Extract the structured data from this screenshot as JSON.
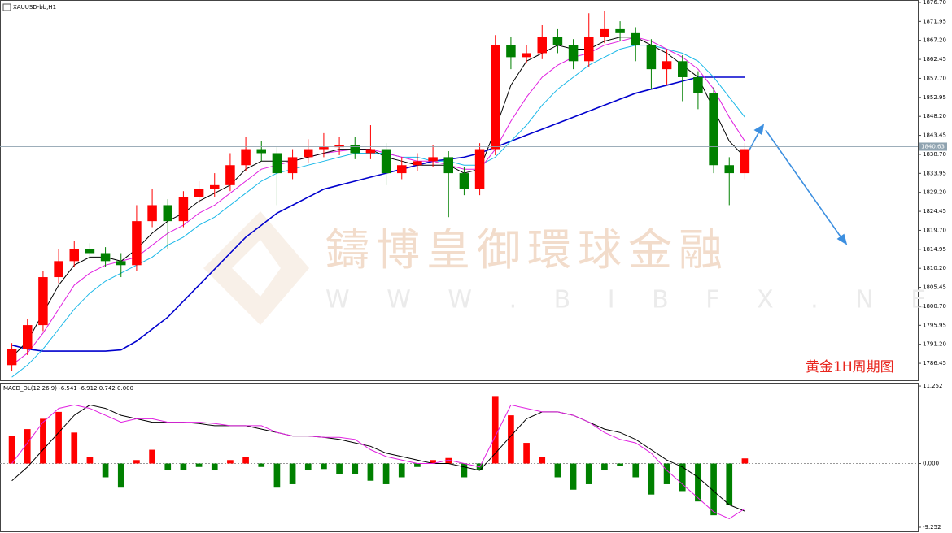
{
  "chart_data": [
    {
      "type": "candlestick",
      "title": "XAUUSD-bb,H1",
      "annotation": "黄金1H周期图",
      "watermark": "鑄博皇御環球金融",
      "watermark_url": "W W W . B I B F X . N E T",
      "up_color": "#ff0000",
      "down_color": "#008000",
      "last_price": 1840.63,
      "candles": {
        "open": [
          1786,
          1790,
          1796,
          1808,
          1812,
          1815,
          1814,
          1812,
          1811,
          1822,
          1826,
          1822,
          1828,
          1830,
          1831,
          1836,
          1840,
          1839,
          1834,
          1838,
          1840,
          1840.5,
          1841,
          1839,
          1840,
          1834,
          1836,
          1837,
          1838,
          1834,
          1830,
          1840,
          1866,
          1863,
          1864,
          1868,
          1866,
          1862,
          1868,
          1870,
          1869,
          1866,
          1860,
          1862,
          1858,
          1854,
          1836,
          1834
        ],
        "high": [
          1791.5,
          1797.5,
          1809.5,
          1815,
          1817,
          1816.5,
          1815.5,
          1814,
          1826,
          1830,
          1827.5,
          1829.5,
          1832,
          1834,
          1839,
          1843,
          1842,
          1840.5,
          1840,
          1842.5,
          1844,
          1843,
          1843,
          1846,
          1841.5,
          1838,
          1839,
          1841,
          1839.5,
          1835.5,
          1841.5,
          1868.5,
          1868,
          1866,
          1871,
          1870,
          1867.5,
          1874,
          1874.5,
          1872,
          1870.5,
          1867.5,
          1865,
          1863.5,
          1859.5,
          1855.5,
          1838,
          1841.5
        ],
        "low": [
          1784.5,
          1788.5,
          1794.5,
          1806.5,
          1810.5,
          1812.5,
          1810.5,
          1808,
          1809.5,
          1820.5,
          1815,
          1820.5,
          1826.5,
          1828,
          1829.5,
          1834.5,
          1837,
          1826,
          1832.5,
          1836.5,
          1838,
          1838.5,
          1837.5,
          1837.5,
          1831,
          1832.5,
          1834.5,
          1835.5,
          1823,
          1828.5,
          1828.5,
          1838.5,
          1860,
          1861.5,
          1862.5,
          1864,
          1860,
          1860.5,
          1866.5,
          1867,
          1862,
          1855,
          1856,
          1852,
          1850,
          1834,
          1826,
          1832.5
        ],
        "close": [
          1790,
          1796,
          1808,
          1812,
          1815,
          1814,
          1812,
          1811,
          1822,
          1826,
          1822,
          1828,
          1830,
          1831,
          1836,
          1840,
          1839,
          1834,
          1838,
          1840,
          1840.5,
          1841,
          1839,
          1840,
          1834,
          1836,
          1837,
          1838,
          1834,
          1830,
          1840,
          1866,
          1863,
          1864,
          1868,
          1866,
          1862,
          1868,
          1870,
          1869,
          1866,
          1860,
          1862,
          1858,
          1854,
          1836,
          1834,
          1840
        ]
      },
      "series": [
        {
          "color": "#0000cd",
          "values": [
            1791,
            1790,
            1789.5,
            1789.5,
            1789.5,
            1789.5,
            1789.5,
            1789.8,
            1792,
            1795,
            1798,
            1802,
            1806,
            1810,
            1814,
            1818,
            1821,
            1824,
            1826,
            1828,
            1830,
            1831,
            1832,
            1833,
            1834,
            1835,
            1836,
            1837,
            1837.5,
            1838,
            1839,
            1840.5,
            1842,
            1843.5,
            1845,
            1846.5,
            1848,
            1849.5,
            1851,
            1852.5,
            1854,
            1855,
            1856,
            1857,
            1858,
            1858,
            1858,
            1858
          ]
        },
        {
          "color": "#1ab8e8",
          "values": [
            1783,
            1786,
            1790,
            1795,
            1800,
            1804,
            1807,
            1809,
            1811,
            1813,
            1816,
            1818,
            1821,
            1823,
            1826,
            1829,
            1832,
            1834,
            1835,
            1836,
            1837,
            1838,
            1839,
            1839,
            1839,
            1838,
            1838,
            1837,
            1837,
            1836,
            1836,
            1838,
            1842,
            1846,
            1851,
            1855,
            1858,
            1861,
            1863,
            1865,
            1866,
            1866,
            1865,
            1864,
            1862,
            1858,
            1853,
            1848
          ]
        },
        {
          "color": "#e020e0",
          "values": [
            1786,
            1789,
            1794,
            1800,
            1806,
            1809,
            1811,
            1812,
            1813,
            1816,
            1819,
            1821,
            1824,
            1826,
            1829,
            1832,
            1835,
            1836,
            1837,
            1838,
            1839,
            1839.5,
            1840,
            1840,
            1839,
            1838,
            1837,
            1837,
            1836,
            1835,
            1835,
            1840,
            1847,
            1853,
            1858,
            1861,
            1863,
            1864,
            1866,
            1867,
            1868,
            1867,
            1865,
            1863,
            1860,
            1855,
            1848,
            1842
          ]
        },
        {
          "color": "#000000",
          "values": [
            1788,
            1792,
            1799,
            1806,
            1811,
            1813,
            1813,
            1812,
            1815,
            1819,
            1822,
            1824,
            1827,
            1829,
            1831,
            1835,
            1837,
            1837,
            1837,
            1838,
            1839,
            1840,
            1840,
            1840,
            1838,
            1837,
            1836,
            1836,
            1836,
            1834,
            1835,
            1845,
            1856,
            1862,
            1864,
            1866,
            1865,
            1865,
            1867,
            1868,
            1868,
            1866,
            1864,
            1861,
            1858,
            1850,
            1842,
            1838
          ]
        }
      ],
      "ylim": [
        1782.2,
        1877.3
      ],
      "yticks": [
        {
          "value": 1876.7,
          "label": "1876.70"
        },
        1871.95,
        {
          "value": 1867.2,
          "label": "1867.20"
        },
        1862.45,
        {
          "value": 1857.7,
          "label": "1857.70"
        },
        1852.95,
        {
          "value": 1848.2,
          "label": "1848.20"
        },
        1843.45,
        {
          "value": 1838.7,
          "label": "1838.70"
        },
        1833.95,
        {
          "value": 1829.2,
          "label": "1829.20"
        },
        1824.45,
        {
          "value": 1819.7,
          "label": "1819.70"
        },
        1814.95,
        {
          "value": 1810.2,
          "label": "1810.20"
        },
        1805.45,
        {
          "value": 1800.7,
          "label": "1800.70"
        },
        1795.95,
        {
          "value": 1791.2,
          "label": "1791.20"
        },
        1786.45
      ]
    },
    {
      "type": "macd",
      "title": "MACD_DL(12,26,9) -6.541 -6.912 0.742 0.000",
      "up_color": "#ff0000",
      "down_color": "#008000",
      "values": [
        4,
        5,
        6.5,
        7.5,
        4.5,
        1,
        -2,
        -3.5,
        0.5,
        2,
        -1,
        -1,
        -0.5,
        -1,
        0.5,
        1,
        -0.5,
        -3.5,
        -3,
        -1,
        -0.8,
        -1.5,
        -1.5,
        -2.5,
        -3,
        -2,
        -0.5,
        0.5,
        0.8,
        -2,
        -1,
        9.8,
        7,
        3,
        1,
        -2,
        -3.8,
        -3,
        -1,
        -0.3,
        -2,
        -4.5,
        -3,
        -4,
        -5.5,
        -7.5,
        -6,
        0.742
      ],
      "series": [
        {
          "color": "#000000",
          "values": [
            -2.5,
            -0.5,
            2,
            4.5,
            7,
            8.5,
            8,
            7,
            6.5,
            6,
            6,
            6,
            5.8,
            5.5,
            5.5,
            5.5,
            5,
            4.5,
            4,
            4,
            3.8,
            3.5,
            3,
            2.5,
            1.5,
            1,
            0.5,
            0,
            0,
            -0.5,
            -1,
            1.5,
            4,
            6.5,
            7.5,
            7.5,
            7,
            6,
            5,
            4.5,
            3.5,
            2,
            0.5,
            -0.5,
            -2,
            -4,
            -6,
            -6.912
          ]
        },
        {
          "color": "#e020e0",
          "values": [
            0,
            3,
            6,
            8,
            8.5,
            8,
            7,
            6,
            6.5,
            6.5,
            6,
            6,
            6,
            5.8,
            5.5,
            5.5,
            5.5,
            4.5,
            4,
            4,
            3.8,
            3.8,
            3.5,
            2,
            1,
            0.5,
            0,
            0,
            0.5,
            0,
            -0.5,
            4,
            8.5,
            8,
            7.5,
            7.5,
            7,
            6,
            4.5,
            3.5,
            3,
            1.5,
            -1,
            -3,
            -5,
            -7,
            -8,
            -6.541
          ]
        }
      ],
      "ylim": [
        -9.84,
        11.73
      ],
      "yticks": [
        11.252,
        {
          "value": 0,
          "label": "0.000"
        },
        -9.252
      ]
    }
  ]
}
